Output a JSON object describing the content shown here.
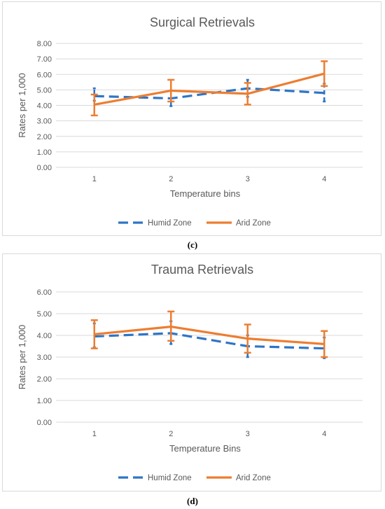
{
  "chart_data": [
    {
      "type": "line",
      "title": "Surgical Retrievals",
      "xlabel": "Temperature bins",
      "ylabel": "Rates per 1,000",
      "categories": [
        "1",
        "2",
        "3",
        "4"
      ],
      "ylim": [
        0,
        8
      ],
      "yticks": [
        "0.00",
        "1.00",
        "2.00",
        "3.00",
        "4.00",
        "5.00",
        "6.00",
        "7.00",
        "8.00"
      ],
      "grid": true,
      "legend_position": "bottom",
      "series": [
        {
          "name": "Humid Zone",
          "color": "#2e75c6",
          "style": "dashed",
          "values": [
            4.6,
            4.45,
            5.1,
            4.8
          ],
          "err_low": [
            4.3,
            3.95,
            4.55,
            4.25
          ],
          "err_high": [
            5.1,
            4.95,
            5.65,
            5.4
          ]
        },
        {
          "name": "Arid Zone",
          "color": "#ed7d31",
          "style": "solid",
          "values": [
            4.05,
            4.95,
            4.75,
            6.05
          ],
          "err_low": [
            3.35,
            4.25,
            4.05,
            5.25
          ],
          "err_high": [
            4.7,
            5.65,
            5.45,
            6.85
          ]
        }
      ]
    },
    {
      "type": "line",
      "title": "Trauma Retrievals",
      "xlabel": "Temperature Bins",
      "ylabel": "Rates per 1,000",
      "categories": [
        "1",
        "2",
        "3",
        "4"
      ],
      "ylim": [
        0,
        6
      ],
      "yticks": [
        "0.00",
        "1.00",
        "2.00",
        "3.00",
        "4.00",
        "5.00",
        "6.00"
      ],
      "grid": true,
      "legend_position": "bottom",
      "series": [
        {
          "name": "Humid Zone",
          "color": "#2e75c6",
          "style": "dashed",
          "values": [
            3.95,
            4.1,
            3.5,
            3.4
          ],
          "err_low": [
            3.45,
            3.6,
            3.0,
            2.95
          ],
          "err_high": [
            4.55,
            4.65,
            4.0,
            3.9
          ]
        },
        {
          "name": "Arid Zone",
          "color": "#ed7d31",
          "style": "solid",
          "values": [
            4.05,
            4.4,
            3.85,
            3.6
          ],
          "err_low": [
            3.4,
            3.75,
            3.2,
            3.0
          ],
          "err_high": [
            4.7,
            5.1,
            4.5,
            4.2
          ]
        }
      ]
    }
  ],
  "captions": [
    "(c)",
    "(d)"
  ]
}
